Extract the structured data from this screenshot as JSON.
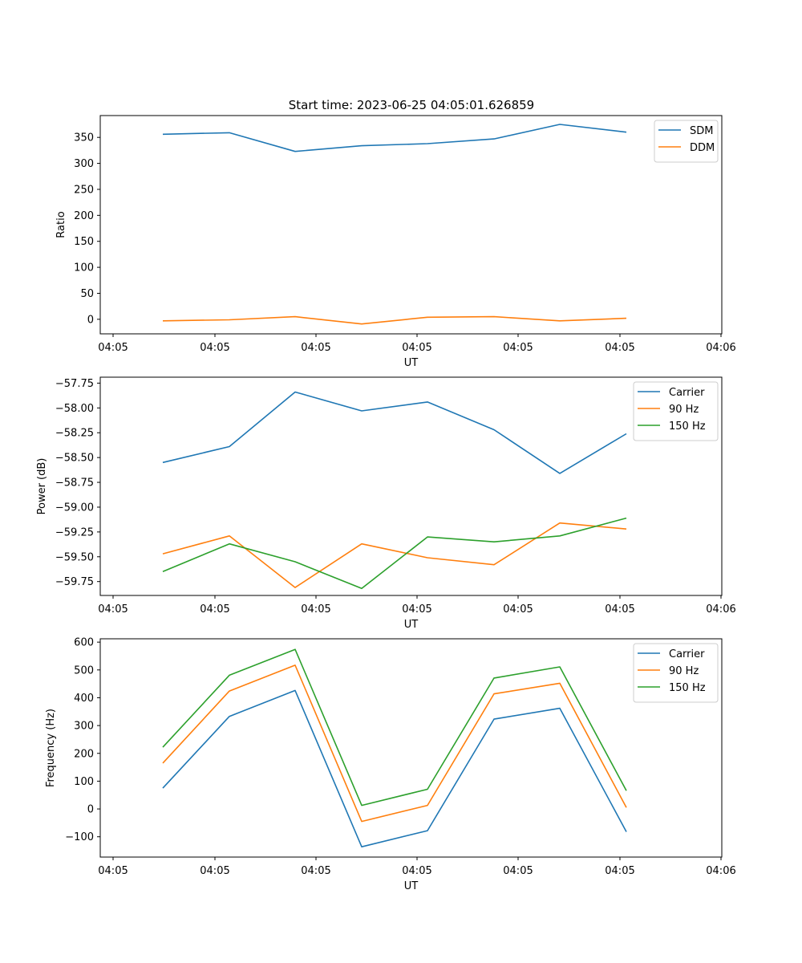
{
  "figure_title": "Start time: 2023-06-25 04:05:01.626859",
  "chart_data": [
    {
      "type": "line",
      "title": "Start time: 2023-06-25 04:05:01.626859",
      "xlabel": "UT",
      "ylabel": "Ratio",
      "x_ticks": [
        "04:05",
        "04:05",
        "04:05",
        "04:05",
        "04:05",
        "04:05",
        "04:06"
      ],
      "y_ticks": [
        0,
        50,
        100,
        150,
        200,
        250,
        300,
        350
      ],
      "ylim": [
        -28,
        392
      ],
      "grid": false,
      "legend_position": "top-right",
      "series": [
        {
          "name": "SDM",
          "color": "#1f77b4",
          "values": [
            356,
            359,
            323,
            334,
            338,
            347,
            375,
            360
          ]
        },
        {
          "name": "DDM",
          "color": "#ff7f0e",
          "values": [
            -3,
            -1,
            5,
            -9,
            4,
            5,
            -3,
            2
          ]
        }
      ]
    },
    {
      "type": "line",
      "xlabel": "UT",
      "ylabel": "Power (dB)",
      "x_ticks": [
        "04:05",
        "04:05",
        "04:05",
        "04:05",
        "04:05",
        "04:05",
        "04:06"
      ],
      "y_ticks": [
        -59.75,
        -59.5,
        -59.25,
        -59.0,
        -58.75,
        -58.5,
        -58.25,
        -58.0,
        -57.75
      ],
      "ylim": [
        -59.89,
        -57.69
      ],
      "grid": false,
      "legend_position": "top-right",
      "series": [
        {
          "name": "Carrier",
          "color": "#1f77b4",
          "values": [
            -58.55,
            -58.39,
            -57.84,
            -58.03,
            -57.94,
            -58.22,
            -58.66,
            -58.26
          ]
        },
        {
          "name": "90 Hz",
          "color": "#ff7f0e",
          "values": [
            -59.47,
            -59.29,
            -59.81,
            -59.37,
            -59.51,
            -59.58,
            -59.16,
            -59.22
          ]
        },
        {
          "name": "150 Hz",
          "color": "#2ca02c",
          "values": [
            -59.65,
            -59.37,
            -59.55,
            -59.82,
            -59.3,
            -59.35,
            -59.29,
            -59.11
          ]
        }
      ]
    },
    {
      "type": "line",
      "xlabel": "UT",
      "ylabel": "Frequency (Hz)",
      "x_ticks": [
        "04:05",
        "04:05",
        "04:05",
        "04:05",
        "04:05",
        "04:05",
        "04:06"
      ],
      "y_ticks": [
        -100,
        0,
        100,
        200,
        300,
        400,
        500,
        600
      ],
      "ylim": [
        -173,
        612
      ],
      "grid": false,
      "legend_position": "top-right",
      "series": [
        {
          "name": "Carrier",
          "color": "#1f77b4",
          "values": [
            75,
            333,
            426,
            -136,
            -78,
            323,
            362,
            -82
          ]
        },
        {
          "name": "90 Hz",
          "color": "#ff7f0e",
          "values": [
            165,
            424,
            517,
            -45,
            13,
            414,
            452,
            5
          ]
        },
        {
          "name": "150 Hz",
          "color": "#2ca02c",
          "values": [
            222,
            481,
            574,
            13,
            71,
            471,
            511,
            66
          ]
        }
      ]
    }
  ]
}
